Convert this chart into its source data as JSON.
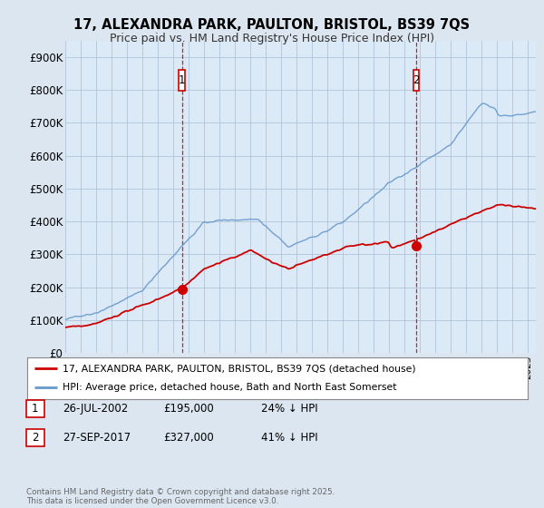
{
  "title_line1": "17, ALEXANDRA PARK, PAULTON, BRISTOL, BS39 7QS",
  "title_line2": "Price paid vs. HM Land Registry's House Price Index (HPI)",
  "ylim": [
    0,
    950000
  ],
  "yticks": [
    0,
    100000,
    200000,
    300000,
    400000,
    500000,
    600000,
    700000,
    800000,
    900000
  ],
  "ytick_labels": [
    "£0",
    "£100K",
    "£200K",
    "£300K",
    "£400K",
    "£500K",
    "£600K",
    "£700K",
    "£800K",
    "£900K"
  ],
  "background_color": "#dce6f0",
  "plot_bg_color": "#dce9f7",
  "hpi_color": "#6699cc",
  "price_color": "#cc0000",
  "vline_color": "#cc0000",
  "purchase1_x": 2002.57,
  "purchase1_y": 195000,
  "purchase1_label": "1",
  "purchase2_x": 2017.74,
  "purchase2_y": 327000,
  "purchase2_label": "2",
  "legend_line1": "17, ALEXANDRA PARK, PAULTON, BRISTOL, BS39 7QS (detached house)",
  "legend_line2": "HPI: Average price, detached house, Bath and North East Somerset",
  "annotation1_date": "26-JUL-2002",
  "annotation1_price": "£195,000",
  "annotation1_pct": "24% ↓ HPI",
  "annotation2_date": "27-SEP-2017",
  "annotation2_price": "£327,000",
  "annotation2_pct": "41% ↓ HPI",
  "copyright_text": "Contains HM Land Registry data © Crown copyright and database right 2025.\nThis data is licensed under the Open Government Licence v3.0.",
  "xmin": 1995,
  "xmax": 2025.5
}
